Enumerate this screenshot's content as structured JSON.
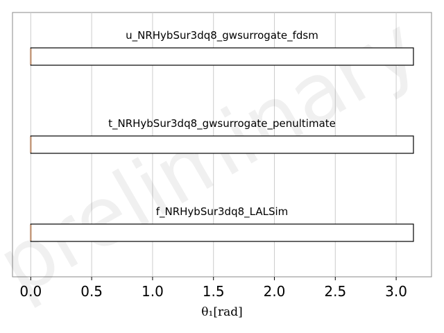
{
  "chart_data": {
    "type": "bar",
    "orientation": "horizontal",
    "watermark": "preliminary",
    "xlabel": "θ₁[rad]",
    "xlim": [
      -0.15,
      3.29
    ],
    "xticks": [
      0.0,
      0.5,
      1.0,
      1.5,
      2.0,
      2.5,
      3.0
    ],
    "xtick_labels": [
      "0.0",
      "0.5",
      "1.0",
      "1.5",
      "2.0",
      "2.5",
      "3.0"
    ],
    "grid": "vertical",
    "rows": [
      {
        "label": "u_NRHybSur3dq8_gwsurrogate_fdsm",
        "start": 0.0,
        "end": 3.14159
      },
      {
        "label": "t_NRHybSur3dq8_gwsurrogate_penultimate",
        "start": 0.0,
        "end": 3.14159
      },
      {
        "label": "f_NRHybSur3dq8_LALSim",
        "start": 0.0,
        "end": 3.14159
      }
    ],
    "colors": {
      "bar_edge": "#000000",
      "marker": "#c49a7c",
      "grid": "#cccccc",
      "frame": "#888888"
    }
  }
}
